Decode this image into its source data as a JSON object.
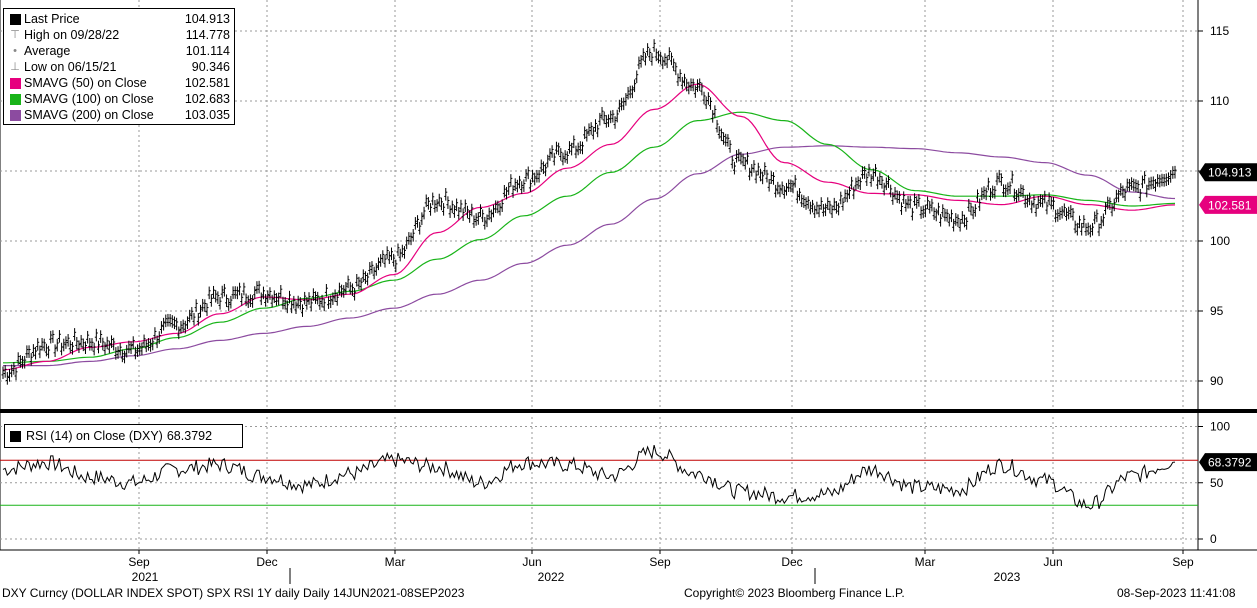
{
  "legend": [
    {
      "label": "Last Price",
      "value": "104.913",
      "color": "#000000",
      "marker": "square"
    },
    {
      "label": "High on 09/28/22",
      "value": "114.778",
      "color": "#888888",
      "marker": "high-icon"
    },
    {
      "label": "Average",
      "value": "101.114",
      "color": "#888888",
      "marker": "average-icon"
    },
    {
      "label": "Low on 06/15/21",
      "value": "90.346",
      "color": "#888888",
      "marker": "low-icon"
    },
    {
      "label": "SMAVG (50)  on Close",
      "value": "102.581",
      "color": "#e6007e",
      "marker": "square"
    },
    {
      "label": "SMAVG (100)  on Close",
      "value": "102.683",
      "color": "#19b419",
      "marker": "square"
    },
    {
      "label": "SMAVG (200)  on Close",
      "value": "103.035",
      "color": "#8c4ba0",
      "marker": "square"
    }
  ],
  "rsi_legend": {
    "label": "RSI (14)  on Close (DXY)",
    "value": "68.3792"
  },
  "price_tags": {
    "last": "104.913",
    "sma50": "102.581",
    "rsi": "68.3792"
  },
  "footer": {
    "left": "DXY Curncy (DOLLAR INDEX SPOT) SPX RSI 1Y daily  Daily 14JUN2021-08SEP2023",
    "center": "Copyright© 2023 Bloomberg Finance L.P.",
    "right": "08-Sep-2023 11:41:08"
  },
  "colors": {
    "price": "#000000",
    "sma50": "#e6007e",
    "sma100": "#19b419",
    "sma200": "#8c4ba0",
    "rsi_upper": "#c00000",
    "rsi_lower": "#19b419",
    "rsi_fill": "#e8a0a0"
  },
  "chart_data": [
    {
      "type": "line",
      "title": "",
      "y_ticks": [
        90,
        95,
        100,
        105,
        110,
        115
      ],
      "ylim": [
        88.5,
        117
      ],
      "x_month_ticks": [
        "Sep",
        "Dec",
        "Mar",
        "Jun",
        "Sep",
        "Dec",
        "Mar",
        "Jun",
        "Sep"
      ],
      "x_year_labels": [
        "2021",
        "2022",
        "2023"
      ],
      "grid": true,
      "legend_position": "top-left",
      "x": [
        "2021-06",
        "2021-07",
        "2021-08",
        "2021-09",
        "2021-10",
        "2021-11",
        "2021-12",
        "2022-01",
        "2022-02",
        "2022-03",
        "2022-04",
        "2022-05",
        "2022-06",
        "2022-07",
        "2022-08",
        "2022-09",
        "2022-10",
        "2022-11",
        "2022-12",
        "2023-01",
        "2023-02",
        "2023-03",
        "2023-04",
        "2023-05",
        "2023-06",
        "2023-07",
        "2023-08",
        "2023-09"
      ],
      "series": [
        {
          "name": "Last Price",
          "values": [
            90.6,
            92.6,
            92.8,
            92.2,
            94.0,
            96.0,
            96.3,
            95.6,
            96.6,
            98.7,
            102.9,
            101.7,
            104.4,
            106.4,
            108.8,
            113.5,
            111.0,
            105.5,
            104.0,
            102.2,
            104.8,
            102.4,
            101.6,
            104.2,
            102.6,
            101.0,
            103.7,
            104.913
          ]
        },
        {
          "name": "SMAVG (50)  on Close",
          "values": [
            90.8,
            91.4,
            92.4,
            92.8,
            93.4,
            94.8,
            96.0,
            95.8,
            96.2,
            97.6,
            100.6,
            102.4,
            103.4,
            105.2,
            106.9,
            109.4,
            111.2,
            108.9,
            105.6,
            104.2,
            103.4,
            103.3,
            102.9,
            102.6,
            103.2,
            102.6,
            102.2,
            102.581
          ]
        },
        {
          "name": "SMAVG (100)  on Close",
          "values": [
            91.3,
            91.4,
            91.7,
            92.3,
            93.1,
            94.2,
            95.2,
            95.9,
            96.4,
            97.2,
            98.7,
            100.1,
            101.8,
            103.2,
            104.9,
            106.7,
            108.6,
            109.2,
            108.6,
            106.9,
            105.1,
            103.6,
            103.2,
            103.2,
            103.3,
            102.9,
            102.5,
            102.683
          ]
        },
        {
          "name": "SMAVG (200)  on Close",
          "values": [
            91.1,
            91.1,
            91.4,
            91.8,
            92.3,
            92.9,
            93.4,
            93.9,
            94.5,
            95.2,
            96.2,
            97.2,
            98.4,
            99.7,
            101.2,
            103.0,
            104.8,
            106.2,
            106.7,
            106.8,
            106.7,
            106.6,
            106.3,
            106.0,
            105.6,
            104.7,
            103.5,
            103.035
          ]
        }
      ]
    },
    {
      "type": "line",
      "title": "",
      "y_ticks": [
        0,
        50,
        100
      ],
      "ylim": [
        -5,
        108
      ],
      "overbought": 70,
      "oversold": 30,
      "x": [
        "2021-06",
        "2021-07",
        "2021-08",
        "2021-09",
        "2021-10",
        "2021-11",
        "2021-12",
        "2022-01",
        "2022-02",
        "2022-03",
        "2022-04",
        "2022-05",
        "2022-06",
        "2022-07",
        "2022-08",
        "2022-09",
        "2022-10",
        "2022-11",
        "2022-12",
        "2023-01",
        "2023-02",
        "2023-03",
        "2023-04",
        "2023-05",
        "2023-06",
        "2023-07",
        "2023-08",
        "2023-09"
      ],
      "series": [
        {
          "name": "RSI (14)  on Close (DXY)",
          "values": [
            62,
            68,
            55,
            50,
            62,
            66,
            56,
            48,
            58,
            70,
            64,
            50,
            68,
            66,
            56,
            78,
            58,
            42,
            38,
            40,
            62,
            46,
            44,
            66,
            52,
            30,
            56,
            68.3792
          ]
        }
      ]
    }
  ]
}
